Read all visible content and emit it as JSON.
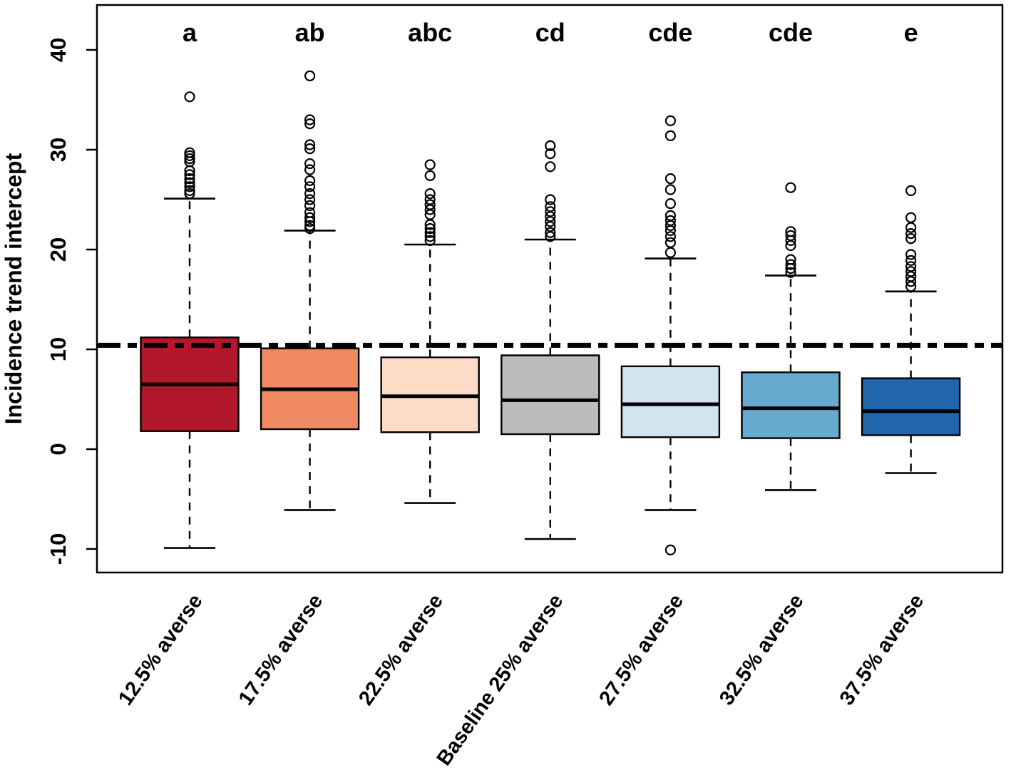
{
  "chart_data": {
    "type": "boxplot",
    "title": "",
    "xlabel": "",
    "ylabel": "Incidence trend intercept",
    "ylim": [
      -12.4,
      44.5
    ],
    "y_ticks": [
      -10,
      0,
      10,
      20,
      30,
      40
    ],
    "grid": false,
    "legend": "none",
    "reference_line": {
      "y": 10.4,
      "style": "dash-dot",
      "color": "#000000"
    },
    "categories": [
      "12.5% averse",
      "17.5% averse",
      "22.5% averse",
      "Baseline 25% averse",
      "27.5% averse",
      "32.5% averse",
      "37.5% averse"
    ],
    "significance_letters": [
      "a",
      "ab",
      "abc",
      "cd",
      "cde",
      "cde",
      "e"
    ],
    "series": [
      {
        "name": "12.5% averse",
        "letter": "a",
        "color": "#B2182B",
        "whisker_low": -9.9,
        "q1": 1.8,
        "median": 6.5,
        "q3": 11.2,
        "whisker_high": 25.1,
        "outliers_upper": [
          25.6,
          25.9,
          26.3,
          26.7,
          27.1,
          27.5,
          27.9,
          28.8,
          29.1,
          29.4,
          29.7,
          35.3
        ],
        "outliers_lower": []
      },
      {
        "name": "17.5% averse",
        "letter": "ab",
        "color": "#EF8A62",
        "whisker_low": -6.1,
        "q1": 2.0,
        "median": 6.0,
        "q3": 10.1,
        "whisker_high": 21.9,
        "outliers_upper": [
          22.1,
          22.4,
          22.8,
          23.2,
          23.7,
          24.4,
          25.0,
          25.6,
          26.3,
          26.9,
          28.0,
          28.6,
          30.1,
          30.5,
          32.6,
          33.0,
          37.4
        ],
        "outliers_lower": []
      },
      {
        "name": "22.5% averse",
        "letter": "abc",
        "color": "#FDDBC7",
        "whisker_low": -5.4,
        "q1": 1.7,
        "median": 5.3,
        "q3": 9.2,
        "whisker_high": 20.5,
        "outliers_upper": [
          20.9,
          21.3,
          21.7,
          22.1,
          22.5,
          23.5,
          24.0,
          24.5,
          25.0,
          25.6,
          27.4,
          28.5
        ],
        "outliers_lower": []
      },
      {
        "name": "Baseline 25% averse",
        "letter": "cd",
        "color": "#BBBBBB",
        "whisker_low": -9.0,
        "q1": 1.5,
        "median": 4.9,
        "q3": 9.4,
        "whisker_high": 21.0,
        "outliers_upper": [
          21.3,
          21.7,
          22.3,
          22.8,
          23.3,
          23.8,
          24.3,
          25.0,
          28.3,
          29.6,
          30.4
        ],
        "outliers_lower": []
      },
      {
        "name": "27.5% averse",
        "letter": "cde",
        "color": "#D1E5F0",
        "whisker_low": -6.1,
        "q1": 1.2,
        "median": 4.5,
        "q3": 8.3,
        "whisker_high": 19.1,
        "outliers_upper": [
          19.7,
          20.7,
          21.3,
          21.9,
          22.4,
          22.9,
          23.4,
          24.6,
          26.0,
          27.1,
          31.4,
          32.9
        ],
        "outliers_lower": [
          -10.1
        ]
      },
      {
        "name": "32.5% averse",
        "letter": "cde",
        "color": "#67A9CF",
        "whisker_low": -4.1,
        "q1": 1.1,
        "median": 4.1,
        "q3": 7.7,
        "whisker_high": 17.4,
        "outliers_upper": [
          17.7,
          18.1,
          18.5,
          19.0,
          20.4,
          20.9,
          21.4,
          21.8,
          26.2
        ],
        "outliers_lower": []
      },
      {
        "name": "37.5% averse",
        "letter": "e",
        "color": "#2166AC",
        "whisker_low": -2.4,
        "q1": 1.4,
        "median": 3.8,
        "q3": 7.1,
        "whisker_high": 15.8,
        "outliers_upper": [
          16.3,
          16.8,
          17.3,
          17.8,
          18.3,
          18.9,
          19.5,
          21.1,
          21.6,
          22.2,
          23.2,
          25.9
        ],
        "outliers_lower": []
      }
    ]
  }
}
